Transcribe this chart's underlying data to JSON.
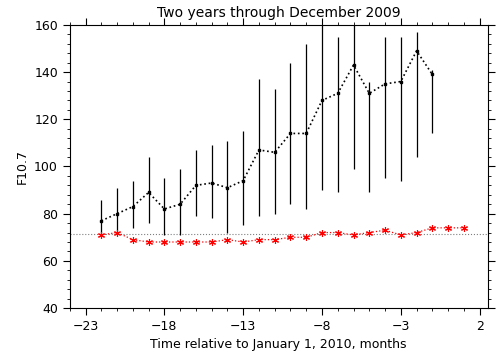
{
  "title": "Two years through December 2009",
  "xlabel": "Time relative to January 1, 2010, months",
  "ylabel": "F10.7",
  "xlim": [
    -24,
    2.5
  ],
  "ylim": [
    40,
    160
  ],
  "xticks": [
    -23,
    -18,
    -13,
    -8,
    -3,
    2
  ],
  "yticks": [
    40,
    60,
    80,
    100,
    120,
    140,
    160
  ],
  "reference_line": 71.5,
  "black_x": [
    -22,
    -21,
    -20,
    -19,
    -18,
    -17,
    -16,
    -15,
    -14,
    -13,
    -12,
    -11,
    -10,
    -9,
    -8,
    -7,
    -6,
    -5,
    -4,
    -3,
    -2,
    -1
  ],
  "black_y": [
    77,
    80,
    83,
    89,
    82,
    84,
    92,
    93,
    91,
    94,
    107,
    106,
    114,
    114,
    128,
    131,
    143,
    131,
    135,
    136,
    149,
    139
  ],
  "black_err_lo": [
    7,
    9,
    9,
    13,
    11,
    13,
    13,
    15,
    19,
    19,
    28,
    26,
    30,
    32,
    38,
    42,
    44,
    42,
    40,
    42,
    45,
    25
  ],
  "black_err_hi": [
    9,
    11,
    11,
    15,
    13,
    15,
    15,
    16,
    20,
    21,
    30,
    27,
    30,
    38,
    32,
    24,
    17,
    5,
    20,
    19,
    8,
    2
  ],
  "red_x": [
    -22,
    -21,
    -20,
    -19,
    -18,
    -17,
    -16,
    -15,
    -14,
    -13,
    -12,
    -11,
    -10,
    -9,
    -8,
    -7,
    -6,
    -5,
    -4,
    -3,
    -2,
    -1,
    0,
    1
  ],
  "red_y": [
    71,
    72,
    69,
    68,
    68,
    68,
    68,
    68,
    69,
    68,
    69,
    69,
    70,
    70,
    72,
    72,
    71,
    72,
    73,
    71,
    72,
    74,
    74,
    74
  ],
  "title_fontsize": 10,
  "label_fontsize": 9,
  "tick_labelsize": 9
}
